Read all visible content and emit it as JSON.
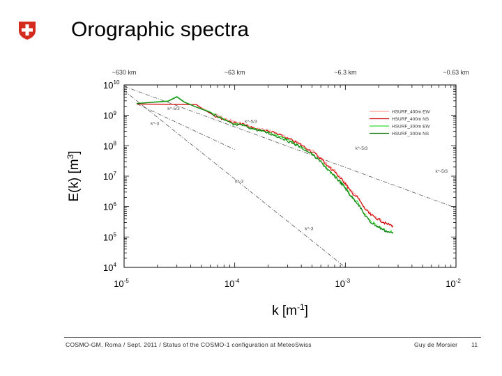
{
  "slide": {
    "title": "Orographic spectra",
    "logo_icon": "swiss-cross-shield-icon",
    "footer_text": "COSMO-GM, Roma / Sept. 2011 / Status of the COSMO-1 configuration at MeteoSwiss",
    "author": "Guy de Morsier",
    "page": "11",
    "brand_color": "#d52b1e"
  },
  "chart_data": {
    "type": "line",
    "xscale": "log",
    "yscale": "log",
    "xlim": [
      1e-05,
      0.01
    ],
    "ylim": [
      10000,
      10000000000
    ],
    "xlabel": "k [m",
    "xlabel_sup": "-1",
    "xlabel_end": "]",
    "ylabel": "E(k) [m",
    "ylabel_sup": "3",
    "ylabel_end": "]",
    "x_ticks": [
      {
        "value": 1e-05,
        "base": "10",
        "exp": "-5"
      },
      {
        "value": 0.0001,
        "base": "10",
        "exp": "-4"
      },
      {
        "value": 0.001,
        "base": "10",
        "exp": "-3"
      },
      {
        "value": 0.01,
        "base": "10",
        "exp": "-2"
      }
    ],
    "y_ticks": [
      {
        "value": 10000000000,
        "base": "10",
        "exp": "10"
      },
      {
        "value": 1000000000,
        "base": "10",
        "exp": "9"
      },
      {
        "value": 100000000,
        "base": "10",
        "exp": "8"
      },
      {
        "value": 10000000,
        "base": "10",
        "exp": "7"
      },
      {
        "value": 1000000,
        "base": "10",
        "exp": "6"
      },
      {
        "value": 100000,
        "base": "10",
        "exp": "5"
      },
      {
        "value": 10000,
        "base": "10",
        "exp": "4"
      }
    ],
    "top_axis_ticks": [
      {
        "value": 1e-05,
        "label": "~630 km"
      },
      {
        "value": 0.0001,
        "label": "~63 km"
      },
      {
        "value": 0.001,
        "label": "~6.3 km"
      },
      {
        "value": 0.01,
        "label": "~0.63 km"
      }
    ],
    "reference_lines": [
      {
        "name": "k^-5/3 (upper)",
        "points": [
          [
            1e-05,
            9000000000
          ],
          [
            0.01,
            900000
          ]
        ],
        "labels": [
          {
            "text": "k^-5/3",
            "at": [
              0.0014,
              75000000
            ]
          },
          {
            "text": "k^-5/3",
            "at": [
              0.0074,
              13000000
            ]
          }
        ]
      },
      {
        "name": "k^-5/3 (middle)",
        "points": [
          [
            1.3e-05,
            2400000000
          ],
          [
            0.0001,
            75000000
          ]
        ],
        "labels": [
          {
            "text": "k^-5/3",
            "at": [
              2.8e-05,
              1500000000
            ]
          },
          {
            "text": "k^-5/3",
            "at": [
              0.00014,
              570000000
            ]
          }
        ]
      },
      {
        "name": "k^-3",
        "points": [
          [
            1e-05,
            6500000000
          ],
          [
            0.001,
            10000
          ]
        ],
        "labels": [
          {
            "text": "k^-3",
            "at": [
              1.9e-05,
              480000000
            ]
          },
          {
            "text": "k^-3",
            "at": [
              0.00011,
              6000000
            ]
          },
          {
            "text": "k^-3",
            "at": [
              0.00047,
              170000
            ]
          }
        ]
      }
    ],
    "series": [
      {
        "name": "HSURF_400m EW",
        "color": "#ff9a9a",
        "points": [
          [
            1.3e-05,
            2400000000
          ],
          [
            4.5e-05,
            2300000000
          ],
          [
            5e-05,
            1800000000
          ],
          [
            6.5e-05,
            1100000000
          ],
          [
            8e-05,
            800000000
          ],
          [
            0.0001,
            600000000
          ],
          [
            0.00012,
            520000000
          ],
          [
            0.00015,
            380000000
          ],
          [
            0.00019,
            330000000
          ],
          [
            0.00023,
            280000000
          ],
          [
            0.00028,
            200000000
          ],
          [
            0.00033,
            160000000
          ],
          [
            0.0004,
            110000000
          ],
          [
            0.0005,
            70000000
          ],
          [
            0.0006,
            40000000
          ],
          [
            0.0007,
            22000000
          ],
          [
            0.0008,
            15000000
          ],
          [
            0.0009,
            9000000
          ],
          [
            0.001,
            6000000
          ],
          [
            0.0011,
            3500000
          ],
          [
            0.0013,
            2000000
          ],
          [
            0.0015,
            900000
          ],
          [
            0.0017,
            550000
          ],
          [
            0.002,
            400000
          ],
          [
            0.0023,
            300000
          ],
          [
            0.0027,
            250000
          ]
        ]
      },
      {
        "name": "HSURF_400m NS",
        "color": "#cc0000",
        "points": [
          [
            1.3e-05,
            2350000000
          ],
          [
            4.5e-05,
            2250000000
          ],
          [
            5e-05,
            1700000000
          ],
          [
            6.5e-05,
            1000000000
          ],
          [
            8e-05,
            750000000
          ],
          [
            0.0001,
            560000000
          ],
          [
            0.00012,
            500000000
          ],
          [
            0.00015,
            360000000
          ],
          [
            0.00019,
            310000000
          ],
          [
            0.00023,
            260000000
          ],
          [
            0.00028,
            190000000
          ],
          [
            0.00033,
            150000000
          ],
          [
            0.0004,
            105000000
          ],
          [
            0.0005,
            65000000
          ],
          [
            0.0006,
            38000000
          ],
          [
            0.0007,
            21000000
          ],
          [
            0.0008,
            14000000
          ],
          [
            0.0009,
            8500000
          ],
          [
            0.001,
            5800000
          ],
          [
            0.0011,
            3300000
          ],
          [
            0.0013,
            1900000
          ],
          [
            0.0015,
            850000
          ],
          [
            0.0017,
            520000
          ],
          [
            0.002,
            380000
          ],
          [
            0.0023,
            280000
          ],
          [
            0.0027,
            230000
          ]
        ]
      },
      {
        "name": "HSURF_300m EW",
        "color": "#33dd33",
        "points": [
          [
            1.3e-05,
            2500000000
          ],
          [
            2.5e-05,
            3000000000
          ],
          [
            3e-05,
            4200000000
          ],
          [
            3.5e-05,
            2800000000
          ],
          [
            4.5e-05,
            1900000000
          ],
          [
            6e-05,
            1300000000
          ],
          [
            8e-05,
            700000000
          ],
          [
            0.0001,
            500000000
          ],
          [
            0.00012,
            470000000
          ],
          [
            0.00015,
            360000000
          ],
          [
            0.00019,
            290000000
          ],
          [
            0.00023,
            230000000
          ],
          [
            0.00028,
            170000000
          ],
          [
            0.00033,
            130000000
          ],
          [
            0.0004,
            90000000
          ],
          [
            0.0005,
            55000000
          ],
          [
            0.0006,
            30000000
          ],
          [
            0.0007,
            16000000
          ],
          [
            0.0008,
            10000000
          ],
          [
            0.0009,
            6500000
          ],
          [
            0.001,
            4200000
          ],
          [
            0.0011,
            2500000
          ],
          [
            0.0013,
            1300000
          ],
          [
            0.0015,
            550000
          ],
          [
            0.0017,
            320000
          ],
          [
            0.002,
            220000
          ],
          [
            0.0023,
            170000
          ],
          [
            0.0027,
            140000
          ]
        ]
      },
      {
        "name": "HSURF_300m NS",
        "color": "#117711",
        "points": [
          [
            1.3e-05,
            2450000000
          ],
          [
            2.5e-05,
            2900000000
          ],
          [
            3e-05,
            4000000000
          ],
          [
            3.5e-05,
            2700000000
          ],
          [
            4.5e-05,
            1850000000
          ],
          [
            6e-05,
            1250000000
          ],
          [
            8e-05,
            680000000
          ],
          [
            0.0001,
            480000000
          ],
          [
            0.00012,
            460000000
          ],
          [
            0.00015,
            350000000
          ],
          [
            0.00019,
            280000000
          ],
          [
            0.00023,
            220000000
          ],
          [
            0.00028,
            165000000
          ],
          [
            0.00033,
            125000000
          ],
          [
            0.0004,
            88000000
          ],
          [
            0.0005,
            52000000
          ],
          [
            0.0006,
            29000000
          ],
          [
            0.0007,
            15500000
          ],
          [
            0.0008,
            9800000
          ],
          [
            0.0009,
            6300000
          ],
          [
            0.001,
            4000000
          ],
          [
            0.0011,
            2400000
          ],
          [
            0.0013,
            1250000
          ],
          [
            0.0015,
            520000
          ],
          [
            0.0017,
            300000
          ],
          [
            0.002,
            210000
          ],
          [
            0.0023,
            160000
          ],
          [
            0.0027,
            130000
          ]
        ]
      }
    ],
    "legend_position": "top-right",
    "grid": false
  }
}
